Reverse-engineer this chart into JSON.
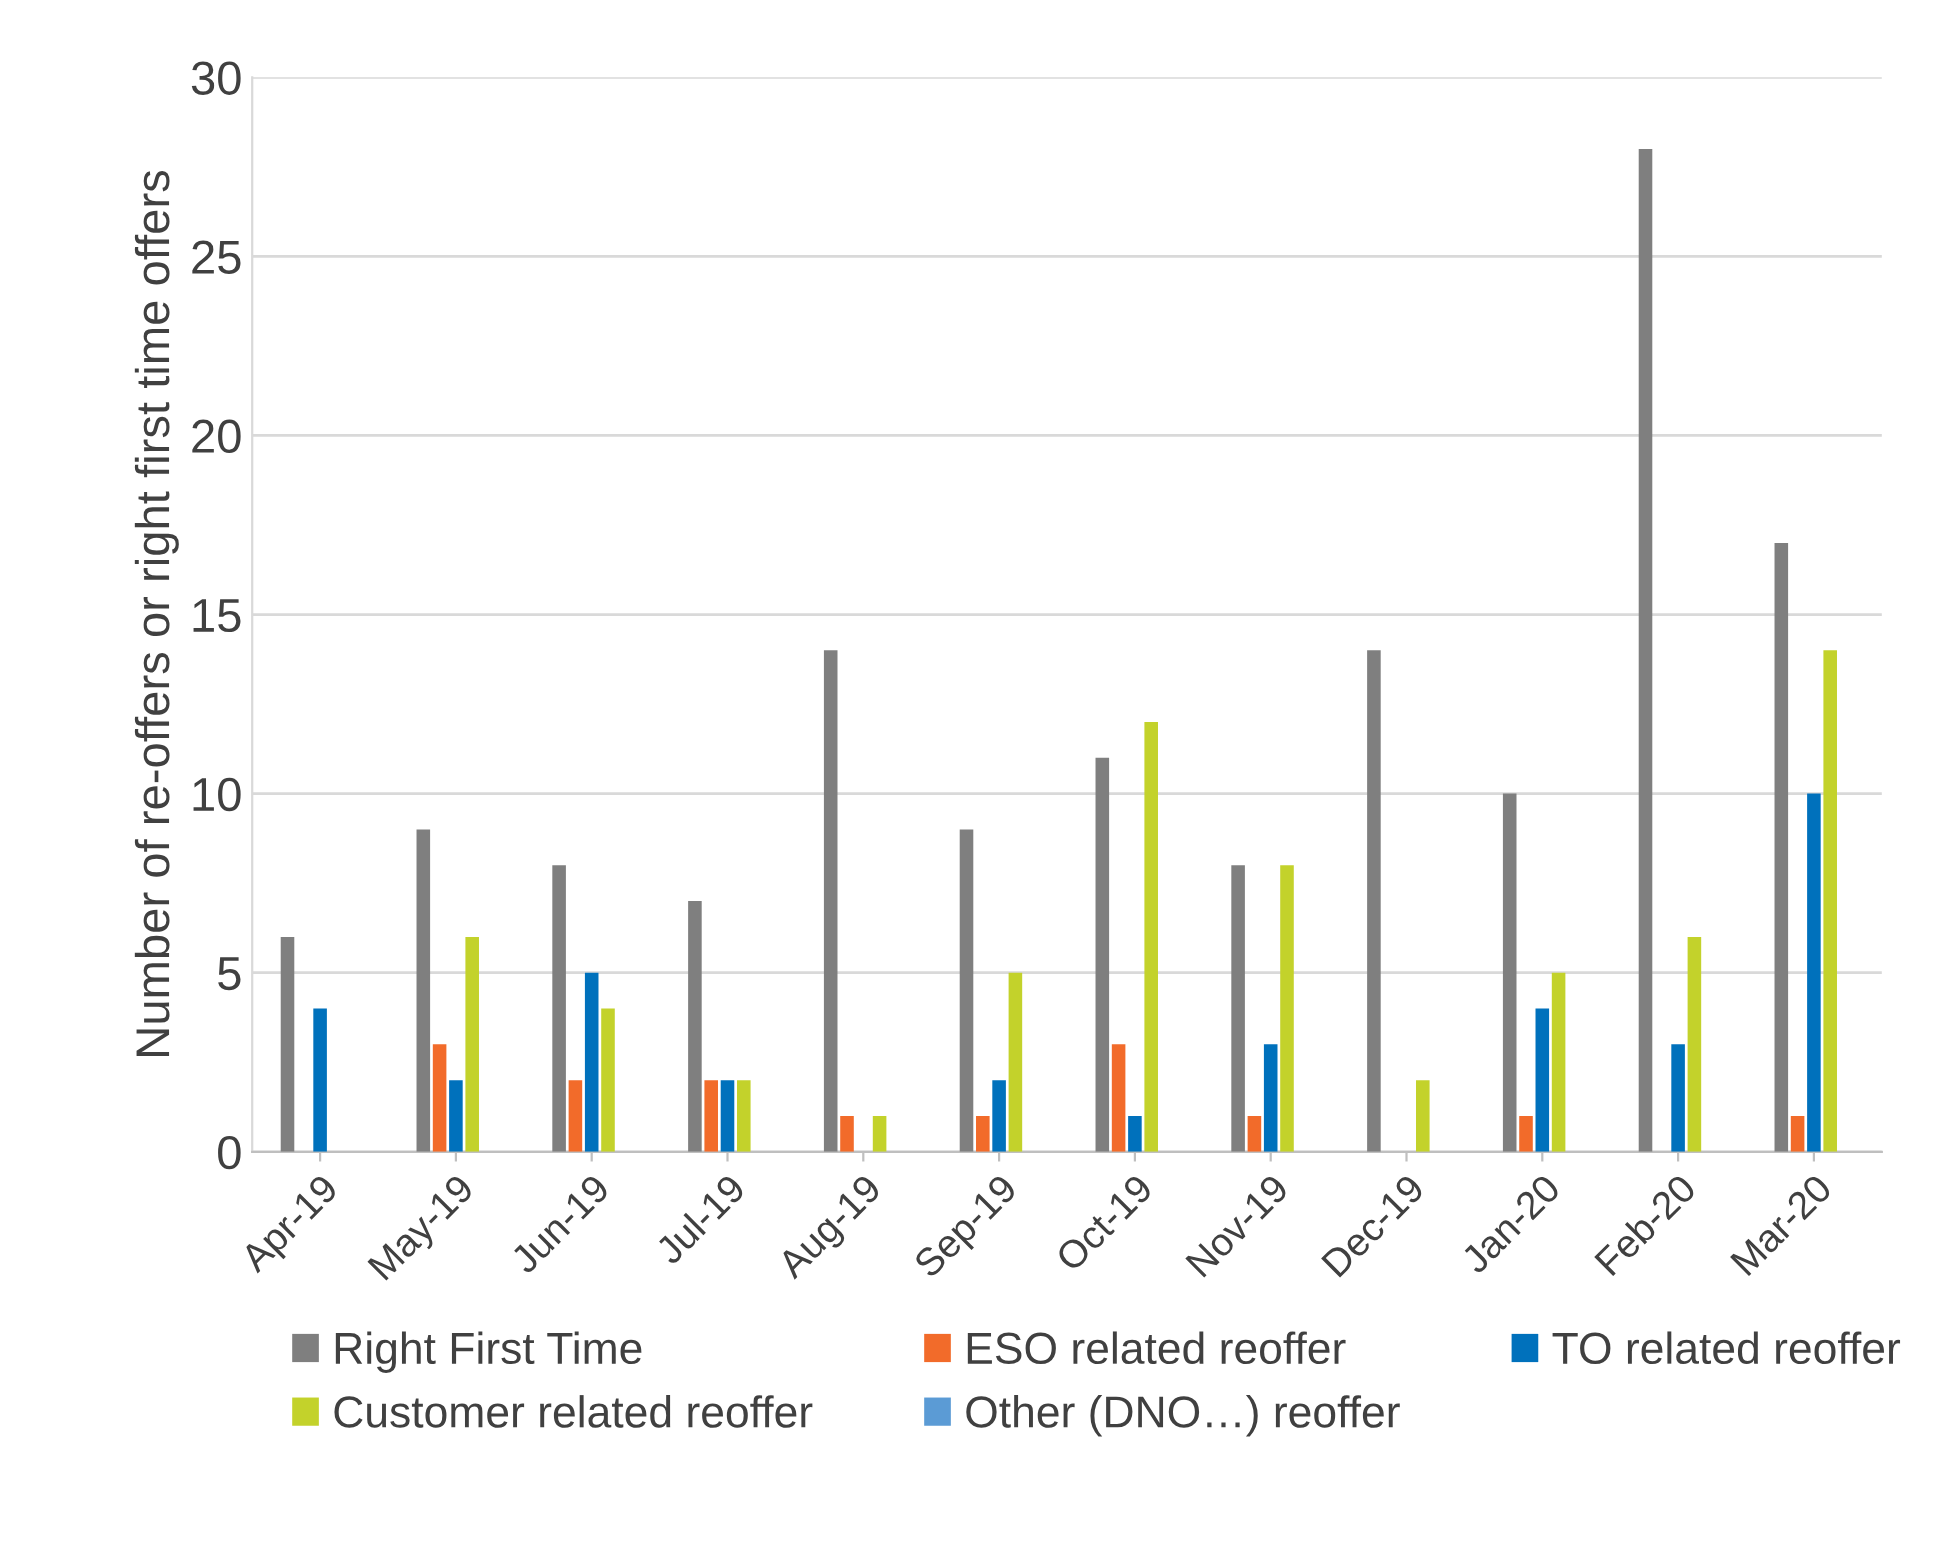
{
  "chart_data": {
    "type": "bar",
    "ylabel": "Number of re-offers or right first time offers",
    "categories": [
      "Apr-19",
      "May-19",
      "Jun-19",
      "Jul-19",
      "Aug-19",
      "Sep-19",
      "Oct-19",
      "Nov-19",
      "Dec-19",
      "Jan-20",
      "Feb-20",
      "Mar-20"
    ],
    "series": [
      {
        "name": "Right First Time",
        "color": "#7f7f7f",
        "values": [
          6,
          9,
          8,
          7,
          14,
          9,
          11,
          8,
          14,
          10,
          28,
          17
        ]
      },
      {
        "name": "ESO related reoffer",
        "color": "#f26b2a",
        "values": [
          0,
          3,
          2,
          2,
          1,
          1,
          3,
          1,
          0,
          1,
          0,
          1
        ]
      },
      {
        "name": "TO related reoffer",
        "color": "#0071bc",
        "values": [
          4,
          2,
          5,
          2,
          0,
          2,
          1,
          3,
          0,
          4,
          3,
          10
        ]
      },
      {
        "name": "Customer related reoffer",
        "color": "#c3d22b",
        "values": [
          0,
          6,
          4,
          2,
          1,
          5,
          12,
          8,
          2,
          5,
          6,
          14
        ]
      },
      {
        "name": "Other (DNO…) reoffer",
        "color": "#5b9bd5",
        "values": [
          0,
          0,
          0,
          0,
          0,
          0,
          0,
          0,
          0,
          0,
          0,
          0
        ]
      }
    ],
    "ylim": [
      0,
      30
    ],
    "yticks": [
      0,
      5,
      10,
      15,
      20,
      25,
      30
    ],
    "grid": "y",
    "legend": "bottom"
  }
}
